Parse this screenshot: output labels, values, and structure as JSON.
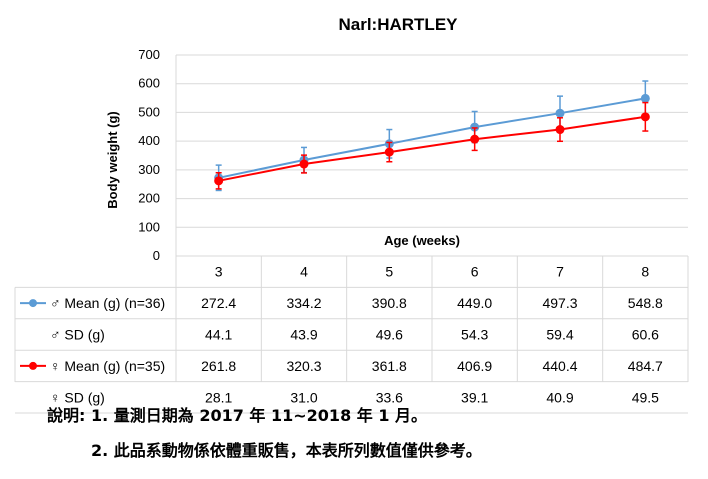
{
  "chart_data": {
    "type": "line",
    "title": "Narl:HARTLEY",
    "xlabel": "Age (weeks)",
    "ylabel": "Body weight (g)",
    "ylim": [
      0,
      700
    ],
    "yticks": [
      "0",
      "100",
      "200",
      "300",
      "400",
      "500",
      "600",
      "700"
    ],
    "categories": [
      "3",
      "4",
      "5",
      "6",
      "7",
      "8"
    ],
    "grid": true,
    "series": [
      {
        "name": "♂ Mean (g) (n=36)",
        "color": "#5B9BD5",
        "values": [
          272.4,
          334.2,
          390.8,
          449.0,
          497.3,
          548.8
        ],
        "error": [
          44.1,
          43.9,
          49.6,
          54.3,
          59.4,
          60.6
        ]
      },
      {
        "name": "♀ Mean (g) (n=35)",
        "color": "#FF0000",
        "values": [
          261.8,
          320.3,
          361.8,
          406.9,
          440.4,
          484.7
        ],
        "error": [
          28.1,
          31.0,
          33.6,
          39.1,
          40.9,
          49.5
        ]
      }
    ],
    "table": {
      "rows": [
        {
          "label": "♂ Mean (g) (n=36)",
          "marker_color": "#5B9BD5",
          "cells": [
            "272.4",
            "334.2",
            "390.8",
            "449.0",
            "497.3",
            "548.8"
          ]
        },
        {
          "label": "♂ SD (g)",
          "marker_color": "",
          "cells": [
            "44.1",
            "43.9",
            "49.6",
            "54.3",
            "59.4",
            "60.6"
          ]
        },
        {
          "label": "♀ Mean (g) (n=35)",
          "marker_color": "#FF0000",
          "cells": [
            "261.8",
            "320.3",
            "361.8",
            "406.9",
            "440.4",
            "484.7"
          ]
        },
        {
          "label": "♀ SD (g)",
          "marker_color": "",
          "cells": [
            "28.1",
            "31.0",
            "33.6",
            "39.1",
            "40.9",
            "49.5"
          ]
        }
      ]
    }
  },
  "notes": {
    "line1": "說明: 1. 量測日期為 2017 年 11~2018 年 1 月。",
    "line2": "2. 此品系動物係依體重販售，本表所列數值僅供參考。"
  }
}
